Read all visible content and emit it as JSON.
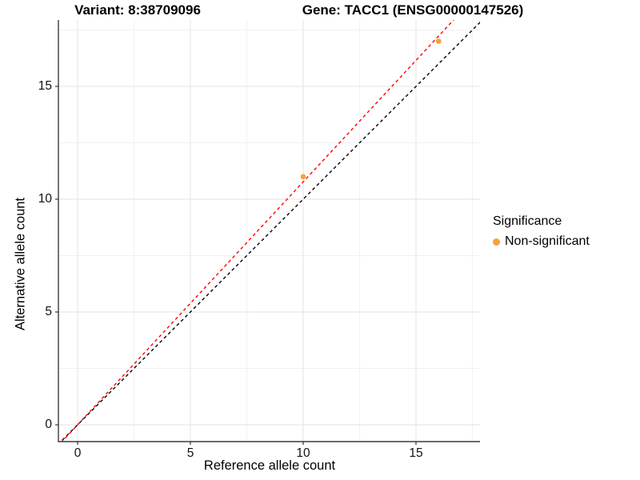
{
  "titles": {
    "variant": "Variant: 8:38709096",
    "gene": "Gene: TACC1 (ENSG00000147526)"
  },
  "legend": {
    "title": "Significance",
    "items": [
      {
        "label": "Non-significant",
        "color": "#F8A13C"
      }
    ]
  },
  "colors": {
    "point": "#F8A13C",
    "identity_line": "#000000",
    "fit_line": "#FF0000",
    "grid_major": "#E3E3E3",
    "grid_minor": "#F1F1F1",
    "axis_line": "#3C3C3C",
    "tick_mark": "#333333"
  },
  "chart_data": {
    "type": "scatter",
    "title": "Variant: 8:38709096 — Gene: TACC1 (ENSG00000147526)",
    "xlabel": "Reference allele count",
    "ylabel": "Alternative allele count",
    "xlim": [
      -0.85,
      17.85
    ],
    "ylim": [
      -0.75,
      18.0
    ],
    "x_ticks": [
      0,
      5,
      10,
      15
    ],
    "y_ticks": [
      0,
      5,
      10,
      15
    ],
    "minor_grid_step": 2.5,
    "grid": "major+minor",
    "legend_position": "right",
    "series": [
      {
        "name": "Non-significant",
        "color": "#F8A13C",
        "points": [
          [
            10,
            11
          ],
          [
            16,
            17
          ]
        ]
      }
    ],
    "lines": [
      {
        "name": "identity-line",
        "slope": 1.0,
        "intercept": 0,
        "color": "#000000",
        "style": "dashed"
      },
      {
        "name": "fit-line",
        "slope": 1.0769,
        "intercept": 0,
        "color": "#FF0000",
        "style": "dashed"
      }
    ]
  }
}
